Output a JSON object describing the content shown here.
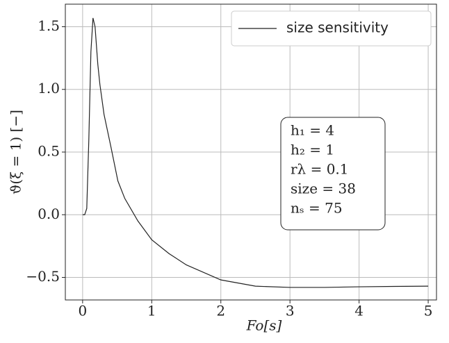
{
  "chart_data": {
    "type": "line",
    "x_label": "Fo[s]",
    "y_label": "ϑ(ξ = 1) [−]",
    "series": [
      {
        "name": "size sensitivity",
        "color": "#222222",
        "x": [
          0,
          0.03,
          0.06,
          0.09,
          0.12,
          0.15,
          0.18,
          0.22,
          0.25,
          0.31,
          0.41,
          0.51,
          0.61,
          0.8,
          1,
          1.25,
          1.5,
          2,
          2.5,
          3,
          3.5,
          4,
          4.5,
          5
        ],
        "values": [
          0,
          0,
          0.05,
          0.6,
          1.3,
          1.57,
          1.5,
          1.2,
          1.04,
          0.8,
          0.54,
          0.27,
          0.13,
          -0.05,
          -0.2,
          -0.31,
          -0.4,
          -0.52,
          -0.57,
          -0.58,
          -0.58,
          -0.575,
          -0.572,
          -0.57
        ]
      }
    ],
    "xlim": [
      -0.25,
      5.12
    ],
    "ylim": [
      -0.68,
      1.68
    ],
    "xticks": [
      0,
      1,
      2,
      3,
      4,
      5
    ],
    "yticks": [
      {
        "value": -0.5,
        "label": "−0.5"
      },
      {
        "value": 0,
        "label": "0.0"
      },
      {
        "value": 0.5,
        "label": "0.5"
      },
      {
        "value": 1,
        "label": "1.0"
      },
      {
        "value": 1.5,
        "label": "1.5"
      }
    ],
    "grid": true,
    "legend": "upper right",
    "annotation": [
      "h₁ = 4",
      "h₂ = 1",
      "rλ = 0.1",
      "size = 38",
      "nₛ = 75"
    ]
  }
}
